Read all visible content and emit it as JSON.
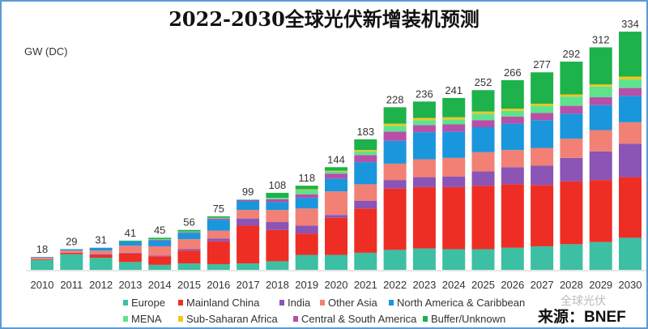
{
  "chart_data": {
    "type": "bar",
    "stacked": true,
    "title": "2022-2030全球光伏新增装机预测",
    "ylabel": "GW (DC)",
    "xlabel": "",
    "ylim": [
      0,
      340
    ],
    "grid": false,
    "legend_position": "bottom",
    "categories": [
      "2010",
      "2011",
      "2012",
      "2013",
      "2014",
      "2015",
      "2016",
      "2017",
      "2018",
      "2019",
      "2020",
      "2021",
      "2022",
      "2023",
      "2024",
      "2025",
      "2026",
      "2027",
      "2028",
      "2029",
      "2030"
    ],
    "totals": [
      18,
      29,
      31,
      41,
      45,
      56,
      75,
      99,
      108,
      118,
      144,
      183,
      228,
      236,
      241,
      252,
      266,
      277,
      292,
      312,
      334
    ],
    "series": [
      {
        "name": "Europe",
        "color": "#3dbfa3",
        "values": [
          14,
          22,
          17,
          11,
          7,
          9,
          8,
          9,
          12,
          21,
          21,
          24,
          28,
          30,
          29,
          29,
          31,
          33,
          36,
          39,
          45
        ]
      },
      {
        "name": "Mainland China",
        "color": "#ee2e24",
        "values": [
          1,
          2,
          4,
          12,
          12,
          18,
          32,
          53,
          44,
          30,
          52,
          62,
          86,
          86,
          87,
          89,
          89,
          86,
          88,
          87,
          85
        ]
      },
      {
        "name": "India",
        "color": "#8b54b5",
        "values": [
          0,
          0,
          1,
          1,
          1,
          2,
          4,
          10,
          11,
          11,
          4,
          11,
          12,
          14,
          15,
          20,
          24,
          27,
          33,
          40,
          47
        ]
      },
      {
        "name": "Other Asia",
        "color": "#f28074",
        "values": [
          2,
          3,
          5,
          10,
          13,
          14,
          11,
          12,
          17,
          24,
          33,
          23,
          23,
          25,
          26,
          27,
          24,
          25,
          27,
          30,
          30
        ]
      },
      {
        "name": "North America & Caribbean",
        "color": "#1a96dc",
        "values": [
          1,
          2,
          4,
          6,
          8,
          9,
          15,
          12,
          11,
          15,
          18,
          31,
          32,
          38,
          37,
          35,
          37,
          39,
          35,
          35,
          37
        ]
      },
      {
        "name": "Central & South America",
        "color": "#b84fa8",
        "values": [
          0,
          0,
          0,
          0,
          1,
          1,
          2,
          2,
          4,
          5,
          7,
          10,
          13,
          10,
          10,
          10,
          10,
          10,
          11,
          11,
          11
        ]
      },
      {
        "name": "MENA",
        "color": "#5de38e",
        "values": [
          0,
          0,
          0,
          0,
          1,
          1,
          1,
          1,
          2,
          6,
          3,
          5,
          8,
          7,
          7,
          9,
          8,
          10,
          13,
          15,
          12
        ]
      },
      {
        "name": "Sub-Saharan Africa",
        "color": "#f5c518",
        "values": [
          0,
          0,
          0,
          0,
          0,
          0,
          0,
          0,
          0,
          1,
          1,
          2,
          3,
          3,
          3,
          3,
          3,
          3,
          3,
          3,
          4
        ]
      },
      {
        "name": "Buffer/Unknown",
        "color": "#1db24b",
        "values": [
          0,
          0,
          0,
          1,
          2,
          2,
          2,
          0,
          7,
          5,
          5,
          15,
          23,
          23,
          27,
          30,
          40,
          44,
          46,
          52,
          63
        ]
      }
    ]
  },
  "source": "来源：BNEF",
  "watermark": "全球光伏"
}
